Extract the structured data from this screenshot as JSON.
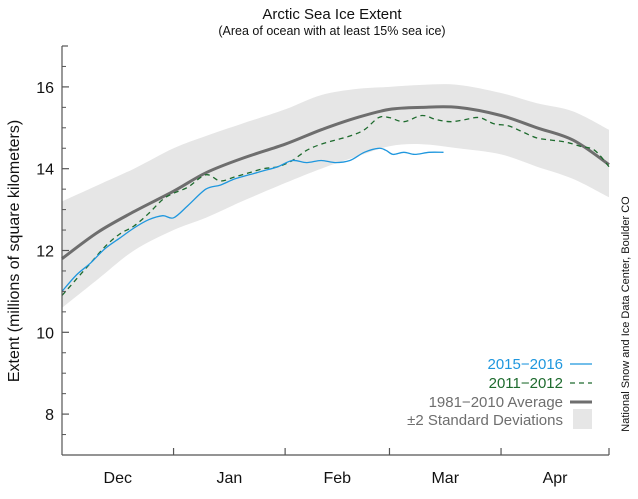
{
  "chart_data": {
    "type": "line",
    "title": "Arctic Sea Ice Extent",
    "subtitle": "(Area of ocean with at least 15% sea ice)",
    "xlabel": "",
    "ylabel": "Extent (millions of square kilometers)",
    "credit": "National Snow and Ice Data Center, Boulder CO",
    "x_units": "days since Dec 1",
    "xlim": [
      0,
      152
    ],
    "ylim": [
      7,
      17
    ],
    "grid": false,
    "legend_position": "bottom-right",
    "month_ticks": [
      0,
      31,
      62,
      91,
      122,
      152
    ],
    "month_labels": [
      {
        "label": "Dec",
        "day": 15.5
      },
      {
        "label": "Jan",
        "day": 46.5
      },
      {
        "label": "Feb",
        "day": 76.5
      },
      {
        "label": "Mar",
        "day": 106.5
      },
      {
        "label": "Apr",
        "day": 137
      }
    ],
    "y_ticks": [
      8,
      10,
      12,
      14,
      16
    ],
    "y_minor_ticks": [
      7.5,
      8.5,
      9,
      9.5,
      10.5,
      11,
      11.5,
      12.5,
      13,
      13.5,
      14.5,
      15,
      15.5,
      16.5
    ],
    "std_band": {
      "name": "±2 Standard Deviations",
      "color": "#e6e6e6",
      "x": [
        0,
        10,
        20,
        31,
        40,
        50,
        62,
        72,
        82,
        91,
        100,
        110,
        122,
        132,
        142,
        152
      ],
      "upper": [
        13.2,
        13.6,
        14.0,
        14.5,
        14.8,
        15.1,
        15.45,
        15.8,
        15.95,
        16.0,
        16.05,
        16.05,
        15.85,
        15.6,
        15.4,
        14.95
      ],
      "lower": [
        10.6,
        11.3,
        12.0,
        12.5,
        12.8,
        13.2,
        13.65,
        14.0,
        14.3,
        14.55,
        14.6,
        14.5,
        14.35,
        14.05,
        13.75,
        13.3
      ]
    },
    "series": [
      {
        "name": "1981–2010 Average",
        "legend_label": "1981−2010 Average",
        "color": "#6e6e6e",
        "style": "solid-thick",
        "x": [
          0,
          10,
          20,
          31,
          40,
          50,
          62,
          72,
          82,
          91,
          100,
          110,
          122,
          132,
          142,
          152
        ],
        "values": [
          11.8,
          12.45,
          12.95,
          13.45,
          13.9,
          14.25,
          14.6,
          14.95,
          15.25,
          15.45,
          15.5,
          15.5,
          15.3,
          15.0,
          14.7,
          14.1
        ]
      },
      {
        "name": "2011–2012",
        "legend_label": "2011−2012",
        "color": "#1e6b2e",
        "style": "dashed",
        "x": [
          0,
          4,
          8,
          12,
          16,
          20,
          24,
          28,
          31,
          35,
          40,
          44,
          48,
          52,
          56,
          60,
          64,
          68,
          72,
          76,
          80,
          84,
          88,
          91,
          95,
          100,
          104,
          108,
          112,
          116,
          120,
          124,
          128,
          132,
          136,
          140,
          144,
          148,
          152
        ],
        "values": [
          10.9,
          11.3,
          11.7,
          12.1,
          12.4,
          12.6,
          12.9,
          13.25,
          13.4,
          13.55,
          13.85,
          13.7,
          13.8,
          13.9,
          14.0,
          14.05,
          14.2,
          14.45,
          14.6,
          14.7,
          14.8,
          14.95,
          15.25,
          15.25,
          15.15,
          15.3,
          15.2,
          15.15,
          15.2,
          15.25,
          15.1,
          15.05,
          14.9,
          14.75,
          14.7,
          14.65,
          14.55,
          14.45,
          14.05
        ]
      },
      {
        "name": "2015–2016",
        "legend_label": "2015−2016",
        "color": "#1f97de",
        "style": "solid",
        "x": [
          0,
          4,
          8,
          12,
          16,
          20,
          24,
          28,
          31,
          35,
          40,
          44,
          48,
          52,
          56,
          60,
          64,
          68,
          72,
          76,
          80,
          84,
          88,
          90,
          92,
          95,
          98,
          102,
          106
        ],
        "values": [
          11.0,
          11.4,
          11.7,
          12.05,
          12.3,
          12.55,
          12.75,
          12.85,
          12.8,
          13.1,
          13.5,
          13.6,
          13.75,
          13.85,
          13.95,
          14.05,
          14.2,
          14.15,
          14.2,
          14.15,
          14.2,
          14.4,
          14.5,
          14.45,
          14.35,
          14.4,
          14.35,
          14.4,
          14.4
        ]
      }
    ]
  }
}
